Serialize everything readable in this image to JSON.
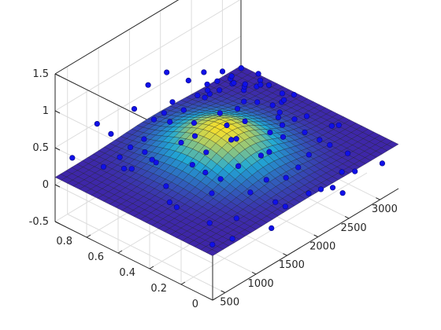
{
  "chart_data": {
    "type": "scatter",
    "subtype": "3d-surface-with-scatter-points",
    "title": "",
    "xlabel": "",
    "ylabel": "",
    "zlabel": "",
    "xlim": [
      300,
      3300
    ],
    "ylim": [
      0,
      1
    ],
    "zlim": [
      -0.5,
      1.5
    ],
    "xticks": [
      500,
      1000,
      1500,
      2000,
      2500,
      3000
    ],
    "yticks": [
      0,
      0.2,
      0.4,
      0.6,
      0.8
    ],
    "zticks": [
      -0.5,
      0,
      0.5,
      1,
      1.5
    ],
    "grid": true,
    "colors": {
      "marker_fill": "#1010e8",
      "marker_edge": "#0a0a80",
      "surface_low": "#3e26a8",
      "surface_mid": "#20a9d6",
      "surface_high": "#fae029",
      "axes": "#262626",
      "grid": "#dcdcdc"
    },
    "surface": {
      "model": "z = 0.1 + 0.38*exp(-((x-1850)/650)^2 - ((y-0.55)/0.3)^2)",
      "x_range": [
        300,
        3300
      ],
      "y_range": [
        0,
        1
      ]
    },
    "series": [
      {
        "points": [
          [
            450,
            0.95,
            0.34
          ],
          [
            520,
            0.6,
            0.53
          ],
          [
            610,
            0.35,
            0.23
          ],
          [
            700,
            0.85,
            0.2
          ],
          [
            760,
            0.2,
            0.1
          ],
          [
            820,
            0.5,
            0.25
          ],
          [
            880,
            0.75,
            0.48
          ],
          [
            940,
            0.1,
            0.18
          ],
          [
            990,
            0.4,
            0.56
          ],
          [
            1040,
            0.65,
            0.3
          ],
          [
            1090,
            0.9,
            0.08
          ],
          [
            1140,
            0.28,
            0.42
          ],
          [
            1190,
            0.55,
            0.6
          ],
          [
            1240,
            0.8,
            0.18
          ],
          [
            1290,
            0.15,
            0.3
          ],
          [
            1340,
            0.45,
            0.5
          ],
          [
            1390,
            0.7,
            0.62
          ],
          [
            1440,
            0.05,
            0.2
          ],
          [
            1490,
            0.35,
            0.7
          ],
          [
            1540,
            0.6,
            0.46
          ],
          [
            1590,
            0.88,
            0.36
          ],
          [
            1640,
            0.22,
            0.55
          ],
          [
            1690,
            0.5,
            0.8
          ],
          [
            1740,
            0.75,
            0.55
          ],
          [
            1790,
            0.12,
            0.28
          ],
          [
            1840,
            0.4,
            0.72
          ],
          [
            1890,
            0.66,
            0.92
          ],
          [
            1940,
            0.9,
            0.4
          ],
          [
            1990,
            0.3,
            0.6
          ],
          [
            2040,
            0.55,
            0.98
          ],
          [
            2090,
            0.8,
            0.52
          ],
          [
            2140,
            0.18,
            0.18
          ],
          [
            2190,
            0.46,
            0.74
          ],
          [
            2240,
            0.72,
            0.6
          ],
          [
            2290,
            0.02,
            0.0
          ],
          [
            2340,
            0.36,
            0.46
          ],
          [
            2390,
            0.62,
            0.68
          ],
          [
            2440,
            0.86,
            0.3
          ],
          [
            2490,
            0.25,
            0.1
          ],
          [
            2540,
            0.5,
            0.48
          ],
          [
            2590,
            0.78,
            0.55
          ],
          [
            2640,
            0.1,
            -0.05
          ],
          [
            2690,
            0.42,
            0.3
          ],
          [
            2740,
            0.68,
            0.44
          ],
          [
            2790,
            0.95,
            0.2
          ],
          [
            2840,
            0.32,
            0.05
          ],
          [
            2890,
            0.58,
            0.26
          ],
          [
            2940,
            0.84,
            0.12
          ],
          [
            2990,
            0.2,
            -0.08
          ],
          [
            3040,
            0.48,
            0.1
          ],
          [
            3090,
            0.74,
            0.22
          ],
          [
            3140,
            0.04,
            -0.12
          ],
          [
            3190,
            0.38,
            0.0
          ],
          [
            3240,
            0.64,
            0.12
          ],
          [
            550,
            0.1,
            0.02
          ],
          [
            650,
            0.7,
            0.36
          ],
          [
            850,
            0.95,
            0.6
          ],
          [
            1000,
            0.15,
            -0.18
          ],
          [
            1150,
            0.98,
            0.28
          ],
          [
            1300,
            0.02,
            -0.05
          ],
          [
            1450,
            0.95,
            0.5
          ],
          [
            1600,
            0.05,
            0.06
          ],
          [
            1750,
            0.98,
            0.64
          ],
          [
            1900,
            0.02,
            0.12
          ],
          [
            2050,
            0.98,
            0.66
          ],
          [
            2200,
            0.06,
            -0.02
          ],
          [
            2350,
            0.96,
            0.42
          ],
          [
            2500,
            0.04,
            -0.2
          ],
          [
            2650,
            0.98,
            0.36
          ],
          [
            2800,
            0.08,
            -0.1
          ],
          [
            2950,
            0.98,
            0.22
          ],
          [
            3100,
            0.3,
            0.14
          ],
          [
            750,
            0.45,
            0.12
          ],
          [
            1050,
            0.3,
            0.25
          ],
          [
            1350,
            0.25,
            0.52
          ],
          [
            1650,
            0.38,
            0.6
          ],
          [
            1950,
            0.45,
            0.88
          ],
          [
            2250,
            0.35,
            0.62
          ],
          [
            2550,
            0.3,
            0.32
          ],
          [
            2850,
            0.55,
            0.34
          ],
          [
            1100,
            0.75,
            0.48
          ],
          [
            1400,
            0.55,
            0.76
          ],
          [
            1700,
            0.6,
            0.9
          ],
          [
            2000,
            0.7,
            0.74
          ],
          [
            2300,
            0.58,
            0.8
          ],
          [
            2600,
            0.6,
            0.62
          ],
          [
            2900,
            0.72,
            0.4
          ],
          [
            3200,
            0.85,
            0.2
          ],
          [
            900,
            0.62,
            0.44
          ],
          [
            1200,
            0.4,
            0.35
          ],
          [
            1500,
            0.78,
            0.6
          ],
          [
            1800,
            0.5,
            0.58
          ],
          [
            2100,
            0.55,
            0.6
          ],
          [
            2400,
            0.4,
            0.56
          ],
          [
            2700,
            0.2,
            0.18
          ],
          [
            3000,
            0.62,
            0.28
          ],
          [
            1550,
            0.15,
            0.34
          ],
          [
            1850,
            0.25,
            0.46
          ],
          [
            2150,
            0.28,
            0.48
          ],
          [
            2450,
            0.72,
            0.58
          ],
          [
            2750,
            0.85,
            0.36
          ],
          [
            3050,
            0.9,
            0.3
          ]
        ]
      }
    ]
  }
}
